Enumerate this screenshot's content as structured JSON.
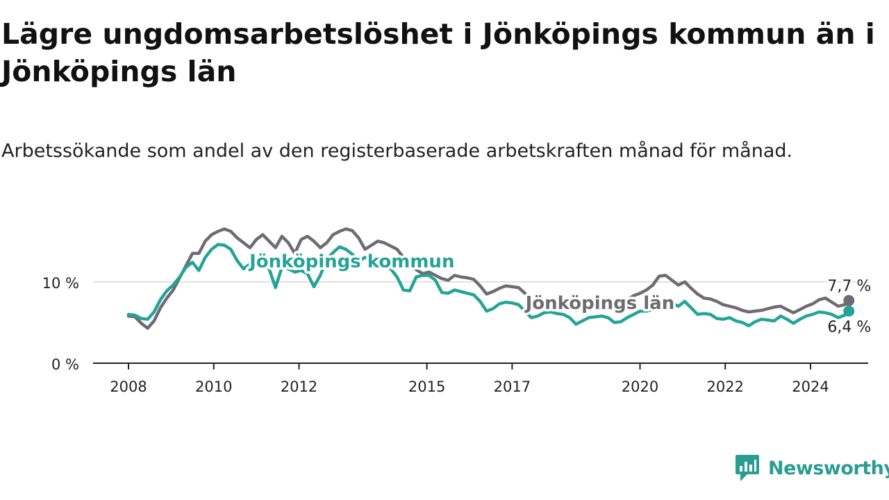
{
  "title": "Lägre ungdomsarbetslöshet i Jönköpings kommun än i Jönköpings län",
  "subtitle": "Arbetssökande som andel av den registerbaserade arbetskraften månad för månad.",
  "brand": {
    "name": "Newsworthy",
    "color": "#2a9d93"
  },
  "chart_data": {
    "type": "line",
    "title": "Lägre ungdomsarbetslöshet i Jönköpings kommun än i Jönköpings län",
    "xlabel": "",
    "ylabel": "",
    "xlim": [
      2008.0,
      2025.1
    ],
    "ylim": [
      0,
      17.5
    ],
    "grid": true,
    "x_ticks": [
      {
        "value": 2008,
        "label": "2008"
      },
      {
        "value": 2010,
        "label": "2010"
      },
      {
        "value": 2012,
        "label": "2012"
      },
      {
        "value": 2015,
        "label": "2015"
      },
      {
        "value": 2017,
        "label": "2017"
      },
      {
        "value": 2020,
        "label": "2020"
      },
      {
        "value": 2022,
        "label": "2022"
      },
      {
        "value": 2024,
        "label": "2024"
      }
    ],
    "y_ticks": [
      {
        "value": 0,
        "label": "0 %"
      },
      {
        "value": 10,
        "label": "10 %"
      }
    ],
    "series": [
      {
        "name": "Jönköpings län",
        "color": "#6e6b73",
        "last_label": "7,7 %",
        "label_at": [
          2017.15,
          7.7
        ],
        "points": [
          [
            2008.0,
            5.8
          ],
          [
            2008.15,
            5.7
          ],
          [
            2008.3,
            4.9
          ],
          [
            2008.45,
            4.3
          ],
          [
            2008.6,
            5.2
          ],
          [
            2008.75,
            6.8
          ],
          [
            2008.9,
            8.0
          ],
          [
            2009.05,
            9.0
          ],
          [
            2009.2,
            10.5
          ],
          [
            2009.35,
            12.0
          ],
          [
            2009.5,
            13.5
          ],
          [
            2009.65,
            13.5
          ],
          [
            2009.8,
            15.0
          ],
          [
            2009.95,
            15.8
          ],
          [
            2010.1,
            16.2
          ],
          [
            2010.25,
            16.5
          ],
          [
            2010.4,
            16.2
          ],
          [
            2010.55,
            15.4
          ],
          [
            2010.7,
            14.8
          ],
          [
            2010.85,
            14.2
          ],
          [
            2011.0,
            15.2
          ],
          [
            2011.15,
            15.8
          ],
          [
            2011.3,
            15.0
          ],
          [
            2011.45,
            14.2
          ],
          [
            2011.6,
            15.6
          ],
          [
            2011.75,
            14.8
          ],
          [
            2011.9,
            13.5
          ],
          [
            2012.05,
            15.2
          ],
          [
            2012.2,
            15.6
          ],
          [
            2012.35,
            15.0
          ],
          [
            2012.5,
            14.2
          ],
          [
            2012.65,
            14.8
          ],
          [
            2012.8,
            15.8
          ],
          [
            2012.95,
            16.2
          ],
          [
            2013.1,
            16.5
          ],
          [
            2013.25,
            16.3
          ],
          [
            2013.4,
            15.4
          ],
          [
            2013.55,
            14.0
          ],
          [
            2013.7,
            14.5
          ],
          [
            2013.85,
            15.0
          ],
          [
            2014.0,
            14.8
          ],
          [
            2014.15,
            14.4
          ],
          [
            2014.3,
            14.0
          ],
          [
            2014.45,
            13.0
          ],
          [
            2014.6,
            12.0
          ],
          [
            2014.75,
            11.5
          ],
          [
            2014.9,
            11.0
          ],
          [
            2015.05,
            11.2
          ],
          [
            2015.2,
            10.8
          ],
          [
            2015.35,
            10.4
          ],
          [
            2015.5,
            10.2
          ],
          [
            2015.65,
            10.8
          ],
          [
            2015.8,
            10.6
          ],
          [
            2015.95,
            10.5
          ],
          [
            2016.1,
            10.3
          ],
          [
            2016.25,
            9.5
          ],
          [
            2016.4,
            8.5
          ],
          [
            2016.55,
            8.8
          ],
          [
            2016.7,
            9.2
          ],
          [
            2016.85,
            9.5
          ],
          [
            2017.0,
            9.4
          ],
          [
            2017.15,
            9.3
          ],
          [
            2017.3,
            8.6
          ],
          [
            2017.45,
            7.8
          ],
          [
            2017.6,
            7.0
          ],
          [
            2017.75,
            7.3
          ],
          [
            2017.9,
            7.6
          ],
          [
            2018.05,
            7.4
          ],
          [
            2018.2,
            7.0
          ],
          [
            2018.35,
            6.8
          ],
          [
            2018.5,
            6.5
          ],
          [
            2018.65,
            6.9
          ],
          [
            2018.8,
            7.1
          ],
          [
            2018.95,
            7.4
          ],
          [
            2019.1,
            7.3
          ],
          [
            2019.25,
            7.0
          ],
          [
            2019.4,
            6.7
          ],
          [
            2019.55,
            7.2
          ],
          [
            2019.7,
            7.8
          ],
          [
            2019.85,
            8.3
          ],
          [
            2020.0,
            8.6
          ],
          [
            2020.15,
            9.0
          ],
          [
            2020.3,
            9.6
          ],
          [
            2020.45,
            10.7
          ],
          [
            2020.6,
            10.8
          ],
          [
            2020.75,
            10.2
          ],
          [
            2020.9,
            9.6
          ],
          [
            2021.05,
            10.0
          ],
          [
            2021.2,
            9.2
          ],
          [
            2021.35,
            8.5
          ],
          [
            2021.5,
            8.0
          ],
          [
            2021.65,
            7.9
          ],
          [
            2021.8,
            7.6
          ],
          [
            2021.95,
            7.2
          ],
          [
            2022.1,
            7.0
          ],
          [
            2022.25,
            6.8
          ],
          [
            2022.4,
            6.5
          ],
          [
            2022.55,
            6.3
          ],
          [
            2022.7,
            6.4
          ],
          [
            2022.85,
            6.5
          ],
          [
            2023.0,
            6.7
          ],
          [
            2023.15,
            6.9
          ],
          [
            2023.3,
            7.0
          ],
          [
            2023.45,
            6.6
          ],
          [
            2023.6,
            6.2
          ],
          [
            2023.75,
            6.6
          ],
          [
            2023.9,
            7.0
          ],
          [
            2024.05,
            7.3
          ],
          [
            2024.2,
            7.8
          ],
          [
            2024.35,
            8.0
          ],
          [
            2024.5,
            7.5
          ],
          [
            2024.65,
            7.0
          ],
          [
            2024.8,
            7.2
          ],
          [
            2024.9,
            7.7
          ]
        ]
      },
      {
        "name": "Jönköpings kommun",
        "color": "#24a397",
        "last_label": "6,4 %",
        "label_at": [
          2011.0,
          12.8
        ],
        "points": [
          [
            2008.0,
            6.0
          ],
          [
            2008.15,
            5.9
          ],
          [
            2008.3,
            5.5
          ],
          [
            2008.45,
            5.4
          ],
          [
            2008.6,
            6.3
          ],
          [
            2008.75,
            7.8
          ],
          [
            2008.9,
            8.9
          ],
          [
            2009.05,
            9.6
          ],
          [
            2009.2,
            10.6
          ],
          [
            2009.35,
            11.8
          ],
          [
            2009.5,
            12.4
          ],
          [
            2009.65,
            11.4
          ],
          [
            2009.8,
            13.0
          ],
          [
            2009.95,
            14.0
          ],
          [
            2010.1,
            14.6
          ],
          [
            2010.25,
            14.5
          ],
          [
            2010.4,
            14.0
          ],
          [
            2010.55,
            12.6
          ],
          [
            2010.7,
            11.6
          ],
          [
            2010.85,
            12.2
          ],
          [
            2011.0,
            12.8
          ],
          [
            2011.15,
            12.2
          ],
          [
            2011.3,
            11.6
          ],
          [
            2011.45,
            9.3
          ],
          [
            2011.6,
            11.8
          ],
          [
            2011.75,
            11.6
          ],
          [
            2011.9,
            11.2
          ],
          [
            2012.05,
            11.4
          ],
          [
            2012.2,
            11.0
          ],
          [
            2012.35,
            9.4
          ],
          [
            2012.5,
            10.8
          ],
          [
            2012.65,
            12.8
          ],
          [
            2012.8,
            13.6
          ],
          [
            2012.95,
            14.3
          ],
          [
            2013.1,
            14.0
          ],
          [
            2013.25,
            13.4
          ],
          [
            2013.4,
            12.6
          ],
          [
            2013.55,
            13.0
          ],
          [
            2013.7,
            12.8
          ],
          [
            2013.85,
            12.4
          ],
          [
            2014.0,
            12.2
          ],
          [
            2014.15,
            11.6
          ],
          [
            2014.3,
            10.6
          ],
          [
            2014.45,
            9.0
          ],
          [
            2014.6,
            8.9
          ],
          [
            2014.75,
            10.6
          ],
          [
            2014.9,
            10.8
          ],
          [
            2015.05,
            10.8
          ],
          [
            2015.2,
            10.2
          ],
          [
            2015.35,
            8.7
          ],
          [
            2015.5,
            8.6
          ],
          [
            2015.65,
            9.0
          ],
          [
            2015.8,
            8.8
          ],
          [
            2015.95,
            8.6
          ],
          [
            2016.1,
            8.4
          ],
          [
            2016.25,
            7.6
          ],
          [
            2016.4,
            6.4
          ],
          [
            2016.55,
            6.7
          ],
          [
            2016.7,
            7.3
          ],
          [
            2016.85,
            7.5
          ],
          [
            2017.0,
            7.4
          ],
          [
            2017.15,
            7.2
          ],
          [
            2017.3,
            6.4
          ],
          [
            2017.45,
            5.6
          ],
          [
            2017.6,
            5.8
          ],
          [
            2017.75,
            6.2
          ],
          [
            2017.9,
            6.3
          ],
          [
            2018.05,
            6.1
          ],
          [
            2018.2,
            6.0
          ],
          [
            2018.35,
            5.6
          ],
          [
            2018.5,
            4.8
          ],
          [
            2018.65,
            5.2
          ],
          [
            2018.8,
            5.6
          ],
          [
            2018.95,
            5.7
          ],
          [
            2019.1,
            5.8
          ],
          [
            2019.25,
            5.6
          ],
          [
            2019.4,
            5.0
          ],
          [
            2019.55,
            5.1
          ],
          [
            2019.7,
            5.6
          ],
          [
            2019.85,
            6.0
          ],
          [
            2020.0,
            6.4
          ],
          [
            2020.15,
            6.4
          ],
          [
            2020.3,
            6.6
          ],
          [
            2020.45,
            7.1
          ],
          [
            2020.6,
            7.4
          ],
          [
            2020.75,
            7.4
          ],
          [
            2020.9,
            7.0
          ],
          [
            2021.05,
            7.6
          ],
          [
            2021.2,
            6.8
          ],
          [
            2021.35,
            6.0
          ],
          [
            2021.5,
            6.1
          ],
          [
            2021.65,
            6.0
          ],
          [
            2021.8,
            5.5
          ],
          [
            2021.95,
            5.4
          ],
          [
            2022.1,
            5.6
          ],
          [
            2022.25,
            5.2
          ],
          [
            2022.4,
            5.0
          ],
          [
            2022.55,
            4.6
          ],
          [
            2022.7,
            5.1
          ],
          [
            2022.85,
            5.4
          ],
          [
            2023.0,
            5.3
          ],
          [
            2023.15,
            5.2
          ],
          [
            2023.3,
            5.8
          ],
          [
            2023.45,
            5.4
          ],
          [
            2023.6,
            4.9
          ],
          [
            2023.75,
            5.4
          ],
          [
            2023.9,
            5.8
          ],
          [
            2024.05,
            6.0
          ],
          [
            2024.2,
            6.3
          ],
          [
            2024.35,
            6.2
          ],
          [
            2024.5,
            6.0
          ],
          [
            2024.65,
            5.6
          ],
          [
            2024.8,
            5.9
          ],
          [
            2024.9,
            6.4
          ]
        ]
      }
    ]
  }
}
